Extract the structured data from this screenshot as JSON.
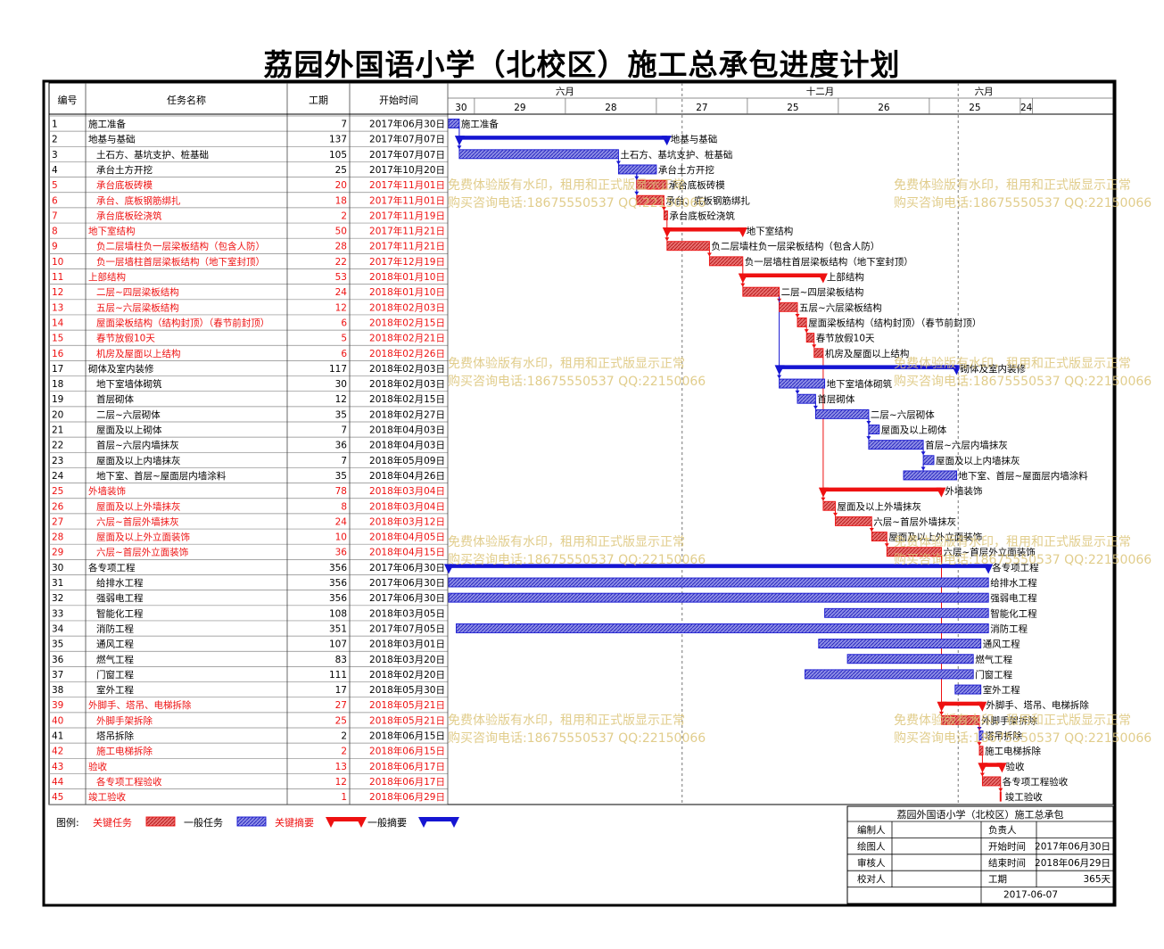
{
  "title": "荔园外国语小学（北校区）施工总承包进度计划",
  "table_headers": {
    "id": "编号",
    "name": "任务名称",
    "duration": "工期",
    "start": "开始时间"
  },
  "timescale": {
    "top": [
      {
        "label": "六月",
        "from": "2017-06-01",
        "to": "2017-12-01"
      },
      {
        "label": "十二月",
        "from": "2017-12-01",
        "to": "2018-06-01"
      },
      {
        "label": "六月",
        "from": "2018-06-01",
        "to": "2018-07-05"
      }
    ],
    "bottom": [
      {
        "label": "30",
        "from": "2017-05-18",
        "to": "2017-07-17"
      },
      {
        "label": "29",
        "from": "2017-07-17",
        "to": "2017-09-15"
      },
      {
        "label": "28",
        "from": "2017-09-15",
        "to": "2017-11-14"
      },
      {
        "label": "27",
        "from": "2017-11-14",
        "to": "2018-01-13"
      },
      {
        "label": "25",
        "from": "2018-01-13",
        "to": "2018-03-14"
      },
      {
        "label": "26",
        "from": "2018-03-14",
        "to": "2018-05-13"
      },
      {
        "label": "25",
        "from": "2018-05-13",
        "to": "2018-07-12"
      },
      {
        "label": "24",
        "from": "2018-07-12",
        "to": "2018-07-20"
      }
    ]
  },
  "chart_data": {
    "type": "gantt",
    "title": "荔园外国语小学（北校区）施工总承包进度计划",
    "x_range": [
      "2017-06-30",
      "2018-07-05"
    ],
    "tasks": [
      {
        "id": "1",
        "name": "施工准备",
        "duration": 7,
        "start": "2017年06月30日",
        "start_date": "2017-06-30",
        "level": 0,
        "kind": "task",
        "critical": false,
        "bar_label": "施工准备"
      },
      {
        "id": "2",
        "name": "地基与基础",
        "duration": 137,
        "start": "2017年07月07日",
        "start_date": "2017-07-07",
        "level": 0,
        "kind": "summary",
        "critical": false,
        "bar_label": "地基与基础"
      },
      {
        "id": "3",
        "name": "土石方、基坑支护、桩基础",
        "duration": 105,
        "start": "2017年07月07日",
        "start_date": "2017-07-07",
        "level": 1,
        "kind": "task",
        "critical": false,
        "bar_label": "土石方、基坑支护、桩基础"
      },
      {
        "id": "4",
        "name": "承台土方开挖",
        "duration": 25,
        "start": "2017年10月20日",
        "start_date": "2017-10-20",
        "level": 1,
        "kind": "task",
        "critical": false,
        "bar_label": "承台土方开挖"
      },
      {
        "id": "5",
        "name": "承台底板砖模",
        "duration": 20,
        "start": "2017年11月01日",
        "start_date": "2017-11-01",
        "level": 1,
        "kind": "task",
        "critical": true,
        "bar_label": "承台底板砖模"
      },
      {
        "id": "6",
        "name": "承台、底板钢筋绑扎",
        "duration": 18,
        "start": "2017年11月01日",
        "start_date": "2017-11-01",
        "level": 1,
        "kind": "task",
        "critical": true,
        "bar_label": "承台、底板钢筋绑扎"
      },
      {
        "id": "7",
        "name": "承台底板砼浇筑",
        "duration": 2,
        "start": "2017年11月19日",
        "start_date": "2017-11-19",
        "level": 1,
        "kind": "task",
        "critical": true,
        "bar_label": "承台底板砼浇筑"
      },
      {
        "id": "8",
        "name": "地下室结构",
        "duration": 50,
        "start": "2017年11月21日",
        "start_date": "2017-11-21",
        "level": 0,
        "kind": "summary",
        "critical": true,
        "bar_label": "地下室结构"
      },
      {
        "id": "9",
        "name": "负二层墙柱负一层梁板结构（包含人防）",
        "duration": 28,
        "start": "2017年11月21日",
        "start_date": "2017-11-21",
        "level": 1,
        "kind": "task",
        "critical": true,
        "bar_label": "负二层墙柱负一层梁板结构（包含人防）"
      },
      {
        "id": "10",
        "name": "负一层墙柱首层梁板结构（地下室封顶）",
        "duration": 22,
        "start": "2017年12月19日",
        "start_date": "2017-12-19",
        "level": 1,
        "kind": "task",
        "critical": true,
        "bar_label": "负一层墙柱首层梁板结构（地下室封顶）"
      },
      {
        "id": "11",
        "name": "上部结构",
        "duration": 53,
        "start": "2018年01月10日",
        "start_date": "2018-01-10",
        "level": 0,
        "kind": "summary",
        "critical": true,
        "bar_label": "上部结构"
      },
      {
        "id": "12",
        "name": "二层~四层梁板结构",
        "duration": 24,
        "start": "2018年01月10日",
        "start_date": "2018-01-10",
        "level": 1,
        "kind": "task",
        "critical": true,
        "bar_label": "二层~四层梁板结构"
      },
      {
        "id": "13",
        "name": "五层~六层梁板结构",
        "duration": 12,
        "start": "2018年02月03日",
        "start_date": "2018-02-03",
        "level": 1,
        "kind": "task",
        "critical": true,
        "bar_label": "五层~六层梁板结构"
      },
      {
        "id": "14",
        "name": "屋面梁板结构（结构封顶）（春节前封顶）",
        "duration": 6,
        "start": "2018年02月15日",
        "start_date": "2018-02-15",
        "level": 1,
        "kind": "task",
        "critical": true,
        "bar_label": "屋面梁板结构（结构封顶）（春节前封顶）"
      },
      {
        "id": "15",
        "name": "春节放假10天",
        "duration": 5,
        "start": "2018年02月21日",
        "start_date": "2018-02-21",
        "level": 1,
        "kind": "task",
        "critical": true,
        "bar_label": "春节放假10天"
      },
      {
        "id": "16",
        "name": "机房及屋面以上结构",
        "duration": 6,
        "start": "2018年02月26日",
        "start_date": "2018-02-26",
        "level": 1,
        "kind": "task",
        "critical": true,
        "bar_label": "机房及屋面以上结构"
      },
      {
        "id": "17",
        "name": "砌体及室内装修",
        "duration": 117,
        "start": "2018年02月03日",
        "start_date": "2018-02-03",
        "level": 0,
        "kind": "summary",
        "critical": false,
        "bar_label": "砌体及室内装修"
      },
      {
        "id": "18",
        "name": "地下室墙体砌筑",
        "duration": 30,
        "start": "2018年02月03日",
        "start_date": "2018-02-03",
        "level": 1,
        "kind": "task",
        "critical": false,
        "bar_label": "地下室墙体砌筑"
      },
      {
        "id": "19",
        "name": "首层砌体",
        "duration": 12,
        "start": "2018年02月15日",
        "start_date": "2018-02-15",
        "level": 1,
        "kind": "task",
        "critical": false,
        "bar_label": "首层砌体"
      },
      {
        "id": "20",
        "name": "二层~六层砌体",
        "duration": 35,
        "start": "2018年02月27日",
        "start_date": "2018-02-27",
        "level": 1,
        "kind": "task",
        "critical": false,
        "bar_label": "二层~六层砌体"
      },
      {
        "id": "21",
        "name": "屋面及以上砌体",
        "duration": 7,
        "start": "2018年04月03日",
        "start_date": "2018-04-03",
        "level": 1,
        "kind": "task",
        "critical": false,
        "bar_label": "屋面及以上砌体"
      },
      {
        "id": "22",
        "name": "首层~六层内墙抹灰",
        "duration": 36,
        "start": "2018年04月03日",
        "start_date": "2018-04-03",
        "level": 1,
        "kind": "task",
        "critical": false,
        "bar_label": "首层~六层内墙抹灰"
      },
      {
        "id": "23",
        "name": "屋面及以上内墙抹灰",
        "duration": 7,
        "start": "2018年05月09日",
        "start_date": "2018-05-09",
        "level": 1,
        "kind": "task",
        "critical": false,
        "bar_label": "屋面及以上内墙抹灰"
      },
      {
        "id": "24",
        "name": "地下室、首层~屋面层内墙涂料",
        "duration": 35,
        "start": "2018年04月26日",
        "start_date": "2018-04-26",
        "level": 1,
        "kind": "task",
        "critical": false,
        "bar_label": "地下室、首层~屋面层内墙涂料"
      },
      {
        "id": "25",
        "name": "外墙装饰",
        "duration": 78,
        "start": "2018年03月04日",
        "start_date": "2018-03-04",
        "level": 0,
        "kind": "summary",
        "critical": true,
        "bar_label": "外墙装饰"
      },
      {
        "id": "26",
        "name": "屋面及以上外墙抹灰",
        "duration": 8,
        "start": "2018年03月04日",
        "start_date": "2018-03-04",
        "level": 1,
        "kind": "task",
        "critical": true,
        "bar_label": "屋面及以上外墙抹灰"
      },
      {
        "id": "27",
        "name": "六层~首层外墙抹灰",
        "duration": 24,
        "start": "2018年03月12日",
        "start_date": "2018-03-12",
        "level": 1,
        "kind": "task",
        "critical": true,
        "bar_label": "六层~首层外墙抹灰"
      },
      {
        "id": "28",
        "name": "屋面及以上外立面装饰",
        "duration": 10,
        "start": "2018年04月05日",
        "start_date": "2018-04-05",
        "level": 1,
        "kind": "task",
        "critical": true,
        "bar_label": "屋面及以上外立面装饰"
      },
      {
        "id": "29",
        "name": "六层~首层外立面装饰",
        "duration": 36,
        "start": "2018年04月15日",
        "start_date": "2018-04-15",
        "level": 1,
        "kind": "task",
        "critical": true,
        "bar_label": "六层~首层外立面装饰"
      },
      {
        "id": "30",
        "name": "各专项工程",
        "duration": 356,
        "start": "2017年06月30日",
        "start_date": "2017-06-30",
        "level": 0,
        "kind": "summary",
        "critical": false,
        "bar_label": "各专项工程"
      },
      {
        "id": "31",
        "name": "给排水工程",
        "duration": 356,
        "start": "2017年06月30日",
        "start_date": "2017-06-30",
        "level": 1,
        "kind": "task",
        "critical": false,
        "bar_label": "给排水工程"
      },
      {
        "id": "32",
        "name": "强弱电工程",
        "duration": 356,
        "start": "2017年06月30日",
        "start_date": "2017-06-30",
        "level": 1,
        "kind": "task",
        "critical": false,
        "bar_label": "强弱电工程"
      },
      {
        "id": "33",
        "name": "智能化工程",
        "duration": 108,
        "start": "2018年03月05日",
        "start_date": "2018-03-05",
        "level": 1,
        "kind": "task",
        "critical": false,
        "bar_label": "智能化工程"
      },
      {
        "id": "34",
        "name": "消防工程",
        "duration": 351,
        "start": "2017年07月05日",
        "start_date": "2017-07-05",
        "level": 1,
        "kind": "task",
        "critical": false,
        "bar_label": "消防工程"
      },
      {
        "id": "35",
        "name": "通风工程",
        "duration": 107,
        "start": "2018年03月01日",
        "start_date": "2018-03-01",
        "level": 1,
        "kind": "task",
        "critical": false,
        "bar_label": "通风工程"
      },
      {
        "id": "36",
        "name": "燃气工程",
        "duration": 83,
        "start": "2018年03月20日",
        "start_date": "2018-03-20",
        "level": 1,
        "kind": "task",
        "critical": false,
        "bar_label": "燃气工程"
      },
      {
        "id": "37",
        "name": "门窗工程",
        "duration": 111,
        "start": "2018年02月20日",
        "start_date": "2018-02-20",
        "level": 1,
        "kind": "task",
        "critical": false,
        "bar_label": "门窗工程"
      },
      {
        "id": "38",
        "name": "室外工程",
        "duration": 17,
        "start": "2018年05月30日",
        "start_date": "2018-05-30",
        "level": 1,
        "kind": "task",
        "critical": false,
        "bar_label": "室外工程"
      },
      {
        "id": "39",
        "name": "外脚手、塔吊、电梯拆除",
        "duration": 27,
        "start": "2018年05月21日",
        "start_date": "2018-05-21",
        "level": 0,
        "kind": "summary",
        "critical": true,
        "bar_label": "外脚手、塔吊、电梯拆除"
      },
      {
        "id": "40",
        "name": "外脚手架拆除",
        "duration": 25,
        "start": "2018年05月21日",
        "start_date": "2018-05-21",
        "level": 1,
        "kind": "task",
        "critical": true,
        "bar_label": "外脚手架拆除"
      },
      {
        "id": "41",
        "name": "塔吊拆除",
        "duration": 2,
        "start": "2018年06月15日",
        "start_date": "2018-06-15",
        "level": 1,
        "kind": "task",
        "critical": false,
        "bar_label": "塔吊拆除"
      },
      {
        "id": "42",
        "name": "施工电梯拆除",
        "duration": 2,
        "start": "2018年06月15日",
        "start_date": "2018-06-15",
        "level": 1,
        "kind": "task",
        "critical": true,
        "bar_label": "施工电梯拆除"
      },
      {
        "id": "43",
        "name": "验收",
        "duration": 13,
        "start": "2018年06月17日",
        "start_date": "2018-06-17",
        "level": 0,
        "kind": "summary",
        "critical": true,
        "bar_label": "验收"
      },
      {
        "id": "44",
        "name": "各专项工程验收",
        "duration": 12,
        "start": "2018年06月17日",
        "start_date": "2018-06-17",
        "level": 1,
        "kind": "task",
        "critical": true,
        "bar_label": "各专项工程验收"
      },
      {
        "id": "45",
        "name": "竣工验收",
        "duration": 1,
        "start": "2018年06月29日",
        "start_date": "2018-06-29",
        "level": 0,
        "kind": "milestone",
        "critical": true,
        "bar_label": "竣工验收"
      }
    ]
  },
  "legend": {
    "label": "图例:",
    "items": [
      {
        "label": "关键任务",
        "kind": "task",
        "critical": true
      },
      {
        "label": "一般任务",
        "kind": "task",
        "critical": false
      },
      {
        "label": "关键摘要",
        "kind": "summary",
        "critical": true
      },
      {
        "label": "一般摘要",
        "kind": "summary",
        "critical": false
      }
    ]
  },
  "info_box": {
    "title": "荔园外国语小学（北校区）施工总承包",
    "rows": [
      {
        "label": "编制人",
        "value": "",
        "label2": "负责人",
        "value2": ""
      },
      {
        "label": "绘图人",
        "value": "",
        "label2": "开始时间",
        "value2": "2017年06月30日"
      },
      {
        "label": "审核人",
        "value": "",
        "label2": "结束时间",
        "value2": "2018年06月29日"
      },
      {
        "label": "校对人",
        "value": "",
        "label2": "工期",
        "value2": "365天"
      }
    ],
    "date": "2017-06-07"
  },
  "watermark": {
    "line1": "免费体验版有水印，租用和正式版显示正常",
    "line2": "购买咨询电话:18675550537 QQ:22150066"
  },
  "colors": {
    "critical": "#ee1111",
    "normal": "#1515d2",
    "critical_fill": "#e06060",
    "normal_fill": "#7777dd",
    "watermark": "#dcc478"
  }
}
